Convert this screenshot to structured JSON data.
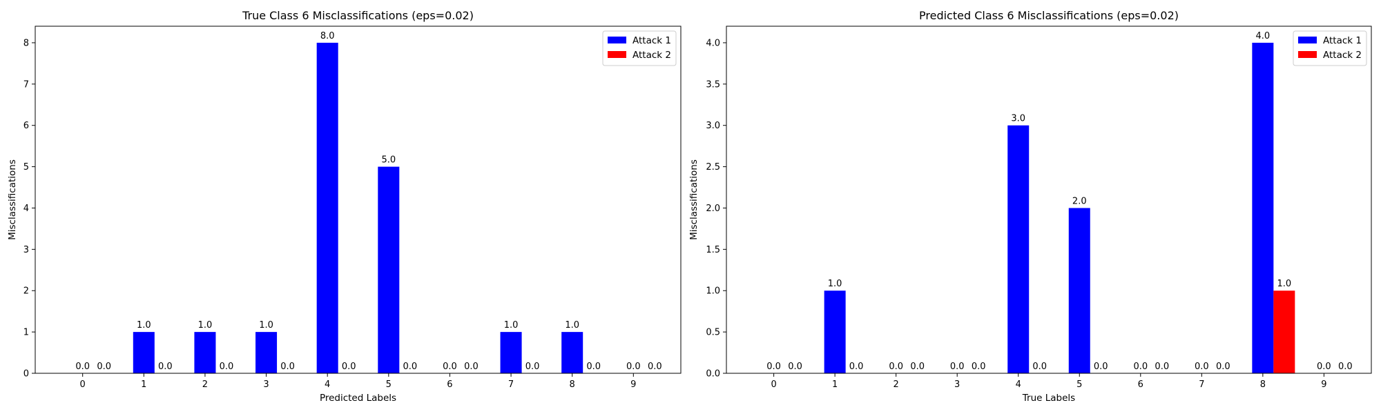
{
  "chart_data": [
    {
      "type": "bar",
      "title": "True Class 6 Misclassifications (eps=0.02)",
      "xlabel": "Predicted Labels",
      "ylabel": "Misclassifications",
      "categories": [
        "0",
        "1",
        "2",
        "3",
        "4",
        "5",
        "6",
        "7",
        "8",
        "9"
      ],
      "series": [
        {
          "name": "Attack 1",
          "color": "#0000ff",
          "values": [
            0,
            1,
            1,
            1,
            8,
            5,
            0,
            1,
            1,
            0
          ]
        },
        {
          "name": "Attack 2",
          "color": "#ff0000",
          "values": [
            0,
            0,
            0,
            0,
            0,
            0,
            0,
            0,
            0,
            0
          ]
        }
      ],
      "bar_labels": [
        [
          "0.0",
          "1.0",
          "1.0",
          "1.0",
          "8.0",
          "5.0",
          "0.0",
          "1.0",
          "1.0",
          "0.0"
        ],
        [
          "0.0",
          "0.0",
          "0.0",
          "0.0",
          "0.0",
          "0.0",
          "0.0",
          "0.0",
          "0.0",
          "0.0"
        ]
      ],
      "ylim": [
        0,
        8.4
      ],
      "yticks": [
        0,
        1,
        2,
        3,
        4,
        5,
        6,
        7,
        8
      ],
      "ytick_labels": [
        "0",
        "1",
        "2",
        "3",
        "4",
        "5",
        "6",
        "7",
        "8"
      ],
      "legend": "top-right",
      "grid": false
    },
    {
      "type": "bar",
      "title": "Predicted Class 6 Misclassifications (eps=0.02)",
      "xlabel": "True Labels",
      "ylabel": "Misclassifications",
      "categories": [
        "0",
        "1",
        "2",
        "3",
        "4",
        "5",
        "6",
        "7",
        "8",
        "9"
      ],
      "series": [
        {
          "name": "Attack 1",
          "color": "#0000ff",
          "values": [
            0,
            1,
            0,
            0,
            3,
            2,
            0,
            0,
            4,
            0
          ]
        },
        {
          "name": "Attack 2",
          "color": "#ff0000",
          "values": [
            0,
            0,
            0,
            0,
            0,
            0,
            0,
            0,
            1,
            0
          ]
        }
      ],
      "bar_labels": [
        [
          "0.0",
          "1.0",
          "0.0",
          "0.0",
          "3.0",
          "2.0",
          "0.0",
          "0.0",
          "4.0",
          "0.0"
        ],
        [
          "0.0",
          "0.0",
          "0.0",
          "0.0",
          "0.0",
          "0.0",
          "0.0",
          "0.0",
          "1.0",
          "0.0"
        ]
      ],
      "ylim": [
        0,
        4.2
      ],
      "yticks": [
        0,
        0.5,
        1,
        1.5,
        2,
        2.5,
        3,
        3.5,
        4
      ],
      "ytick_labels": [
        "0.0",
        "0.5",
        "1.0",
        "1.5",
        "2.0",
        "2.5",
        "3.0",
        "3.5",
        "4.0"
      ],
      "legend": "top-right",
      "grid": false
    }
  ]
}
